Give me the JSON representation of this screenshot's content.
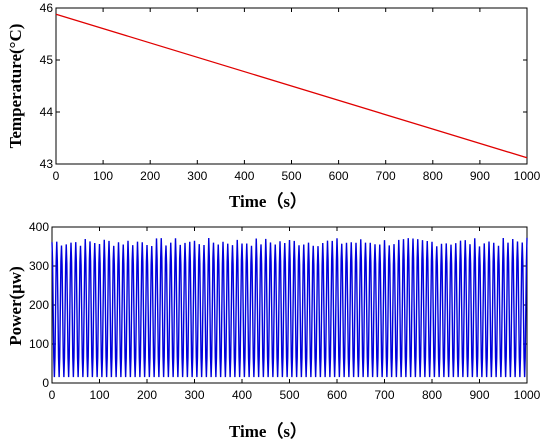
{
  "chart_data": [
    {
      "type": "line",
      "xlabel": "Time（s）",
      "ylabel": "Temperature(°C)",
      "xlim": [
        0,
        1000
      ],
      "ylim": [
        43,
        46
      ],
      "xticks": [
        0,
        100,
        200,
        300,
        400,
        500,
        600,
        700,
        800,
        900,
        1000
      ],
      "yticks": [
        43,
        44,
        45,
        46
      ],
      "grid": false,
      "color": "#e00000",
      "series": [
        {
          "x": [
            0,
            1000
          ],
          "y": [
            45.88,
            43.12
          ]
        }
      ]
    },
    {
      "type": "line",
      "xlabel": "Time（s）",
      "ylabel": "Power(μw)",
      "xlim": [
        0,
        1000
      ],
      "ylim": [
        0,
        400
      ],
      "xticks": [
        0,
        100,
        200,
        300,
        400,
        500,
        600,
        700,
        800,
        900,
        1000
      ],
      "yticks": [
        0,
        100,
        200,
        300,
        400
      ],
      "grid": false,
      "color": "#0000dd",
      "signal": {
        "shape": "oscillation",
        "period_s": 10,
        "cycles": 100,
        "min": 15,
        "max_range": [
          350,
          372
        ]
      }
    }
  ]
}
